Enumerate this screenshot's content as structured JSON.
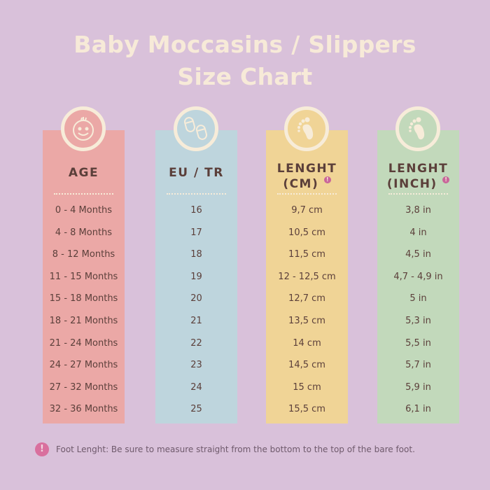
{
  "title": {
    "line1": "Baby Moccasins / Slippers",
    "line2": "Size Chart"
  },
  "colors": {
    "background": "#d9c1da",
    "age": "#eba8a6",
    "eu": "#bed5dd",
    "cm": "#f0d496",
    "inch": "#c2d9bb",
    "text": "#5b3f3a",
    "cream": "#f7ecd9"
  },
  "columns": [
    {
      "icon": "baby-face-icon",
      "header": "AGE",
      "rows": [
        "0 - 4 Months",
        "4 - 8 Months",
        "8 - 12 Months",
        "11 - 15 Months",
        "15 - 18 Months",
        "18 - 21 Months",
        "21 - 24 Months",
        "24 - 27 Months",
        "27 - 32 Months",
        "32 - 36 Months"
      ]
    },
    {
      "icon": "slippers-icon",
      "header": "EU / TR",
      "rows": [
        "16",
        "17",
        "18",
        "19",
        "20",
        "21",
        "22",
        "23",
        "24",
        "25"
      ]
    },
    {
      "icon": "foot-icon",
      "header": "LENGHT",
      "header2": "(CM)",
      "rows": [
        "9,7 cm",
        "10,5 cm",
        "11,5 cm",
        "12 - 12,5 cm",
        "12,7 cm",
        "13,5 cm",
        "14 cm",
        "14,5 cm",
        "15 cm",
        "15,5 cm"
      ]
    },
    {
      "icon": "foot-icon",
      "header": "LENGHT",
      "header2": "(INCH)",
      "rows": [
        "3,8 in",
        "4 in",
        "4,5 in",
        "4,7 - 4,9 in",
        "5 in",
        "5,3 in",
        "5,5 in",
        "5,7 in",
        "5,9 in",
        "6,1 in"
      ]
    }
  ],
  "note": {
    "icon": "exclamation-icon",
    "mark": "!",
    "text": "Foot Lenght: Be sure to measure straight from the bottom to the top of the bare foot."
  }
}
